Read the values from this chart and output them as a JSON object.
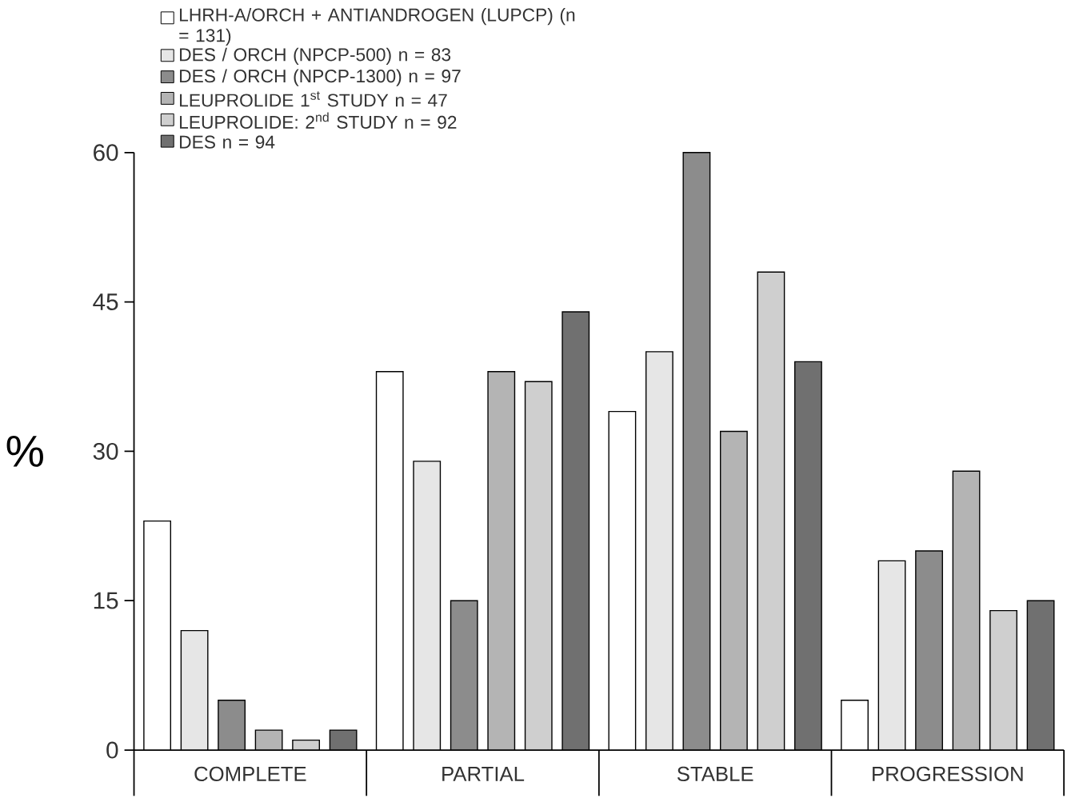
{
  "chart_data": {
    "type": "bar",
    "ylabel": "%",
    "categories": [
      "COMPLETE",
      "PARTIAL",
      "STABLE",
      "PROGRESSION"
    ],
    "series": [
      {
        "name": "LHRH-A/ORCH + ANTIANDROGEN (LUPCP) (n = 131)",
        "color": "#ffffff",
        "values": [
          23,
          38,
          34,
          5
        ]
      },
      {
        "name": "DES / ORCH (NPCP-500) n = 83",
        "color": "#e6e6e6",
        "values": [
          12,
          29,
          40,
          19
        ]
      },
      {
        "name": "DES / ORCH (NPCP-1300) n = 97",
        "color": "#8c8c8c",
        "values": [
          5,
          15,
          60,
          20
        ]
      },
      {
        "name": "LEUPROLIDE 1$^{st}$ STUDY n = 47",
        "color": "#b4b4b4",
        "values": [
          2,
          38,
          32,
          28
        ]
      },
      {
        "name": "LEUPROLIDE: 2$^{nd}$ STUDY n = 92",
        "color": "#cfcfcf",
        "values": [
          1,
          37,
          48,
          14
        ]
      },
      {
        "name": "DES n = 94",
        "color": "#707070",
        "values": [
          2,
          44,
          39,
          15
        ]
      }
    ],
    "ylim": [
      0,
      60
    ],
    "yticks": [
      0,
      15,
      30,
      45,
      60
    ],
    "grid": false,
    "legend": "top left"
  }
}
